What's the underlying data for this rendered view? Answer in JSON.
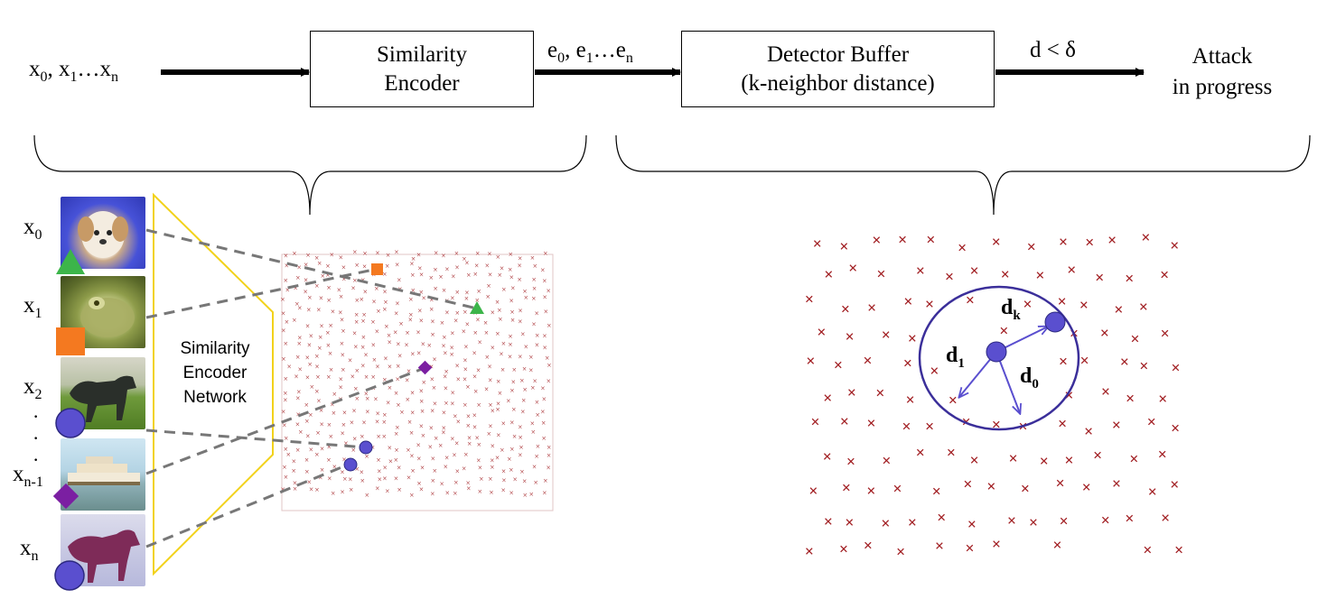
{
  "pipeline": {
    "input_label": "x",
    "encoder_box": {
      "line1": "Similarity",
      "line2": "Encoder"
    },
    "embedding_label": "e",
    "detector_box": {
      "line1": "Detector Buffer",
      "line2": "(k-neighbor distance)"
    },
    "condition_label": "d < δ",
    "output": {
      "line1": "Attack",
      "line2": "in progress"
    }
  },
  "inputs": [
    {
      "base": "x",
      "sub": "0",
      "marker": "triangle-green",
      "image": "dog"
    },
    {
      "base": "x",
      "sub": "1",
      "marker": "square-orange",
      "image": "frog"
    },
    {
      "base": "x",
      "sub": "2",
      "marker": "circle-blue",
      "image": "horse-dark"
    },
    {
      "base": "x",
      "sub": "n-1",
      "marker": "diamond-purple",
      "image": "ship"
    },
    {
      "base": "x",
      "sub": "n",
      "marker": "circle-blue",
      "image": "horse-brown"
    }
  ],
  "network_label": {
    "line1": "Similarity",
    "line2": "Encoder",
    "line3": "Network"
  },
  "distance_labels": {
    "d1": "d",
    "d1_sub": "1",
    "dk": "d",
    "dk_sub": "k",
    "d0": "d",
    "d0_sub": "0"
  },
  "colors": {
    "green": "#3cb54a",
    "orange": "#f47920",
    "blue": "#5a4fcf",
    "purple": "#7b1fa2",
    "cross": "#a11d21",
    "trapezoid": "#f2d21b"
  }
}
